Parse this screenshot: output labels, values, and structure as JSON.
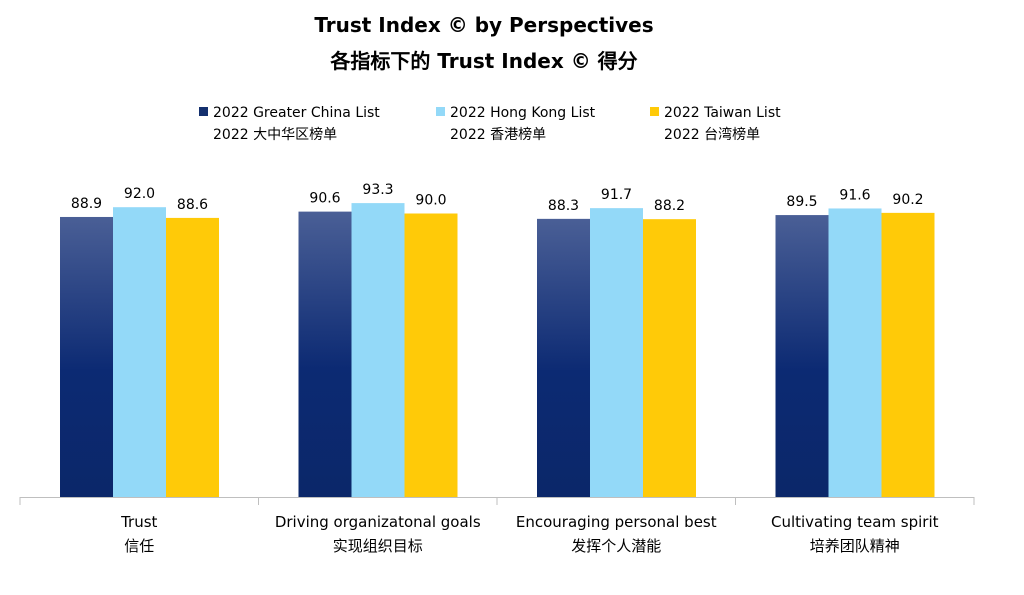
{
  "chart_data": {
    "type": "bar",
    "title": "Trust Index © by Perspectives",
    "subtitle": "各指标下的 Trust Index © 得分",
    "categories": [
      {
        "en": "Trust",
        "zh": "信任"
      },
      {
        "en": "Driving organizatonal goals",
        "zh": "实现组织目标"
      },
      {
        "en": "Encouraging personal best",
        "zh": "发挥个人潜能"
      },
      {
        "en": "Cultivating team spirit",
        "zh": "培养团队精神"
      }
    ],
    "series": [
      {
        "name": "2022 Greater China List",
        "name_zh": "2022 大中华区榜单",
        "color": "#14306e",
        "values": [
          88.9,
          90.6,
          88.3,
          89.5
        ],
        "labels": [
          "88.9",
          "90.6",
          "88.3",
          "89.5"
        ]
      },
      {
        "name": "2022 Hong Kong List",
        "name_zh": "2022 香港榜单",
        "color": "#93d9f8",
        "values": [
          92.0,
          93.3,
          91.7,
          91.6
        ],
        "labels": [
          "92.0",
          "93.3",
          "91.7",
          "91.6"
        ]
      },
      {
        "name": "2022 Taiwan List",
        "name_zh": "2022 台湾榜单",
        "color": "#ffca08",
        "values": [
          88.6,
          90.0,
          88.2,
          90.2
        ],
        "labels": [
          "88.6",
          "90.0",
          "88.2",
          "90.2"
        ]
      }
    ],
    "legend_position": "top",
    "grid": false,
    "value_labels": true
  }
}
